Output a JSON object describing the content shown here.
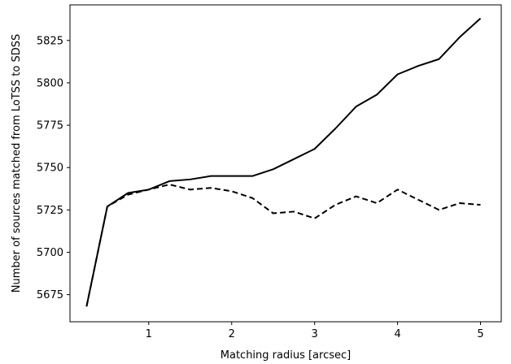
{
  "chart_data": {
    "type": "line",
    "title": "",
    "xlabel": "Matching radius [arcsec]",
    "ylabel": "Number of sources matched from LoTSS to SDSS",
    "xlim": [
      0.05,
      5.25
    ],
    "ylim": [
      5659,
      5846
    ],
    "xticks": [
      1,
      2,
      3,
      4,
      5
    ],
    "xtick_labels": [
      "1",
      "2",
      "3",
      "4",
      "5"
    ],
    "yticks": [
      5675,
      5700,
      5725,
      5750,
      5775,
      5800,
      5825
    ],
    "ytick_labels": [
      "5675",
      "5700",
      "5725",
      "5750",
      "5775",
      "5800",
      "5825"
    ],
    "grid": false,
    "legend": "none",
    "x": [
      0.25,
      0.5,
      0.75,
      1.0,
      1.25,
      1.5,
      1.75,
      2.0,
      2.25,
      2.5,
      2.75,
      3.0,
      3.25,
      3.5,
      3.75,
      4.0,
      4.25,
      4.5,
      4.75,
      5.0
    ],
    "series": [
      {
        "style": "solid",
        "color": "#000000",
        "values": [
          5668,
          5727,
          5735,
          5737,
          5742,
          5743,
          5745,
          5745,
          5745,
          5749,
          5755,
          5761,
          5773,
          5786,
          5793,
          5805,
          5810,
          5814,
          5827,
          5838
        ]
      },
      {
        "style": "dashed",
        "color": "#000000",
        "values": [
          5668,
          5727,
          5734,
          5737,
          5740,
          5737,
          5738,
          5736,
          5732,
          5723,
          5724,
          5720,
          5728,
          5733,
          5729,
          5737,
          5731,
          5725,
          5729,
          5728
        ]
      }
    ]
  }
}
